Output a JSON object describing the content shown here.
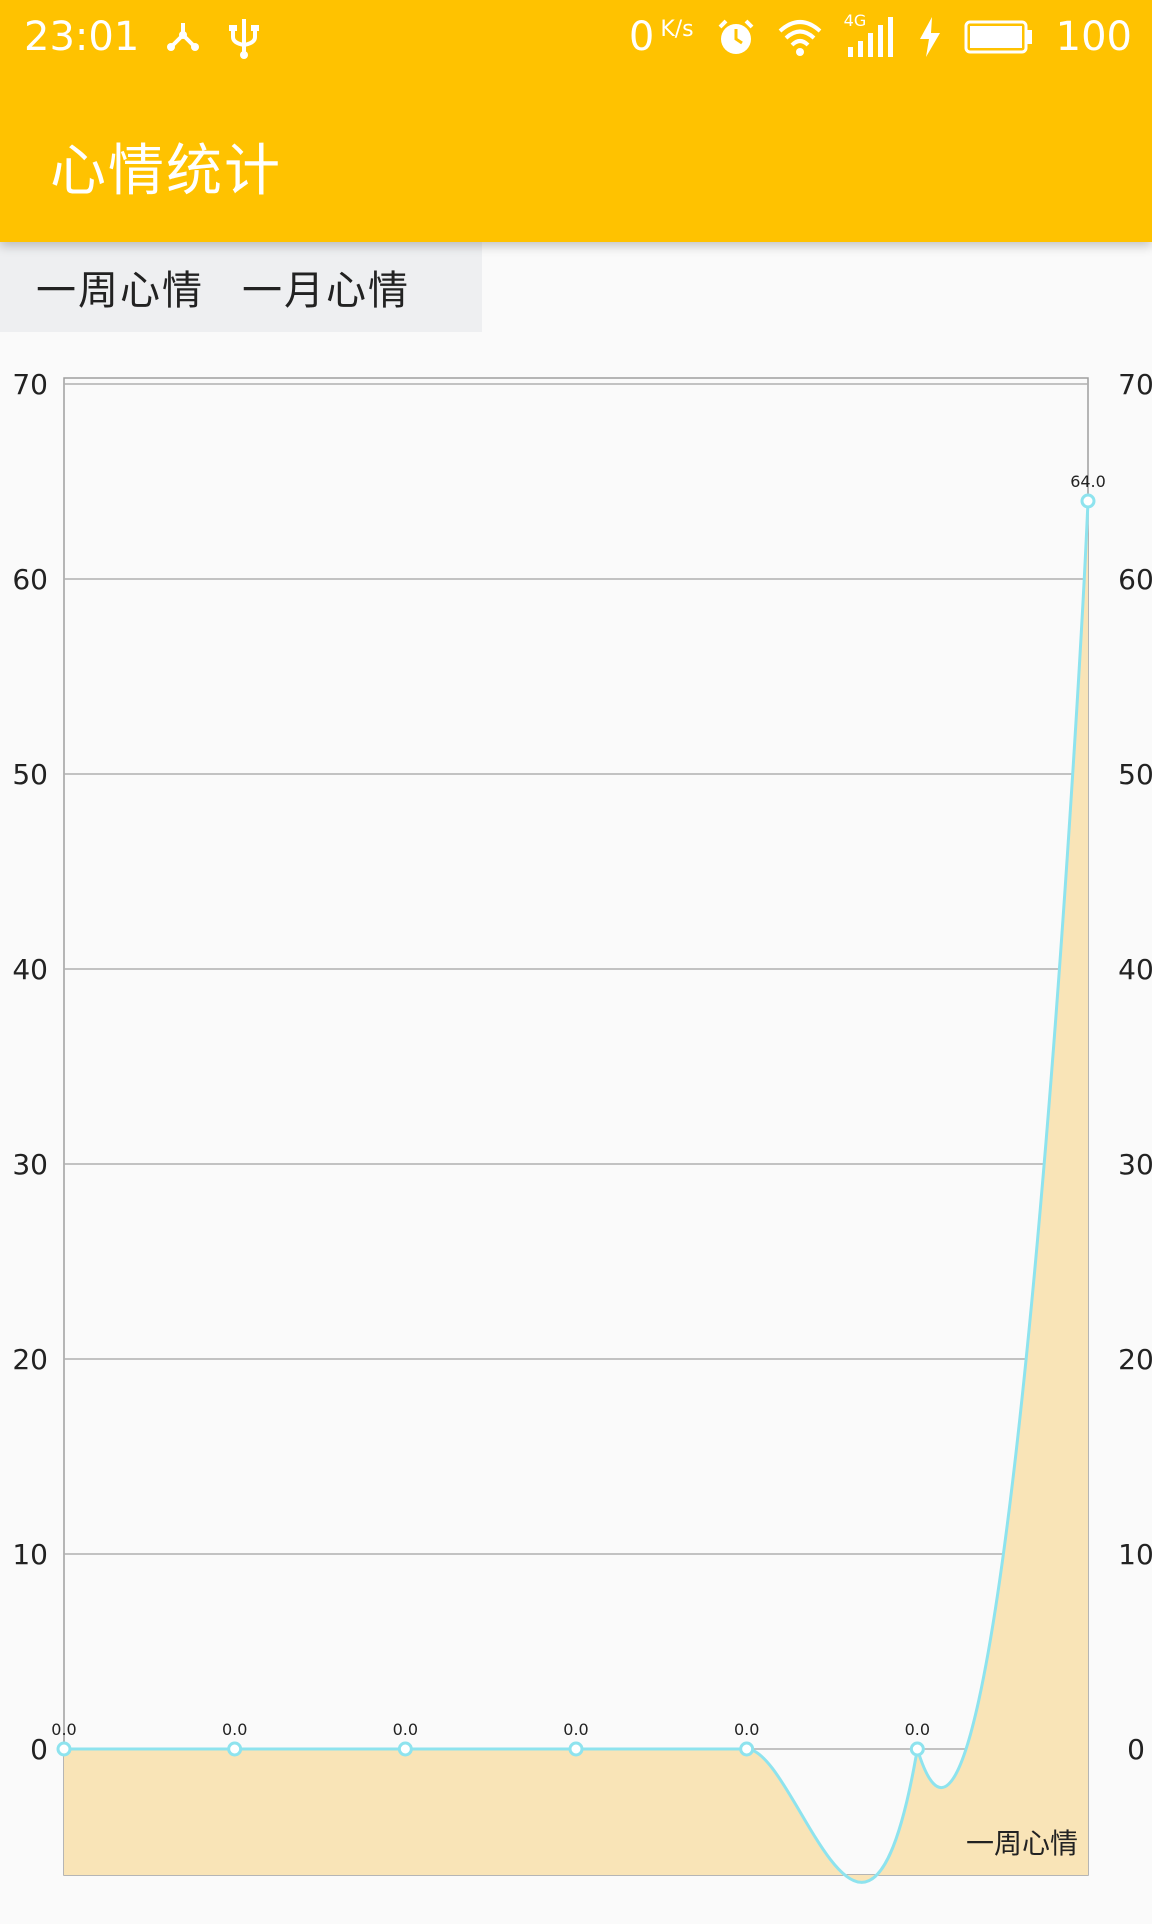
{
  "status_bar": {
    "time": "23:01",
    "net_speed": "0",
    "net_unit": "K/s",
    "network_type": "4G",
    "battery": "100",
    "icons": [
      "usb-tether-icon",
      "usb-icon",
      "alarm-icon",
      "wifi-icon",
      "signal-icon",
      "charging-icon",
      "battery-icon"
    ]
  },
  "app_bar": {
    "title": "心情统计",
    "color": "#ffc200"
  },
  "tabs": [
    {
      "label": "一周心情"
    },
    {
      "label": "一月心情"
    }
  ],
  "chart_data": {
    "type": "line",
    "x": [
      0,
      1,
      2,
      3,
      4,
      5,
      6
    ],
    "series": [
      {
        "name": "一周心情",
        "values": [
          0.0,
          0.0,
          0.0,
          0.0,
          0.0,
          0.0,
          64.0
        ]
      }
    ],
    "value_labels": [
      "0.0",
      "0.0",
      "0.0",
      "0.0",
      "0.0",
      "0.0",
      "64.0"
    ],
    "y_ticks": [
      "0",
      "10",
      "20",
      "30",
      "40",
      "50",
      "60",
      "70"
    ],
    "ylim": [
      0,
      70
    ],
    "grid": true,
    "filled": true,
    "line_color": "#8ee3ee",
    "fill_color": "#f9e4b7",
    "legend_position": "bottom-right"
  }
}
